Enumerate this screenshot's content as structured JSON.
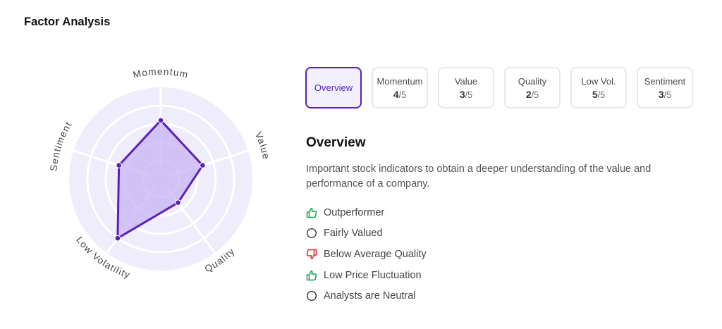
{
  "page_title": "Factor Analysis",
  "chart_data": {
    "type": "radar",
    "axes": [
      "Momentum",
      "Value",
      "Quality",
      "Low Volatility",
      "Sentiment"
    ],
    "values": [
      4,
      3,
      2,
      5,
      3
    ],
    "max": 5,
    "color": "#5b21b6",
    "fill": "#c7b3f4"
  },
  "tabs": [
    {
      "label": "Overview",
      "score": null,
      "max": null,
      "active": true
    },
    {
      "label": "Momentum",
      "score": "4",
      "max": "/5"
    },
    {
      "label": "Value",
      "score": "3",
      "max": "/5"
    },
    {
      "label": "Quality",
      "score": "2",
      "max": "/5"
    },
    {
      "label": "Low Vol.",
      "score": "5",
      "max": "/5"
    },
    {
      "label": "Sentiment",
      "score": "3",
      "max": "/5"
    }
  ],
  "overview": {
    "title": "Overview",
    "description": "Important stock indicators to obtain a deeper understanding of the value and performance of a company.",
    "items": [
      {
        "text": "Outperformer",
        "icon": "thumbs-up-icon",
        "color": "#16a34a"
      },
      {
        "text": "Fairly Valued",
        "icon": "circle-icon",
        "color": "#333333"
      },
      {
        "text": "Below Average Quality",
        "icon": "thumbs-down-icon",
        "color": "#dc2626"
      },
      {
        "text": "Low Price Fluctuation",
        "icon": "thumbs-up-icon",
        "color": "#16a34a"
      },
      {
        "text": "Analysts are Neutral",
        "icon": "circle-icon",
        "color": "#333333"
      }
    ]
  }
}
